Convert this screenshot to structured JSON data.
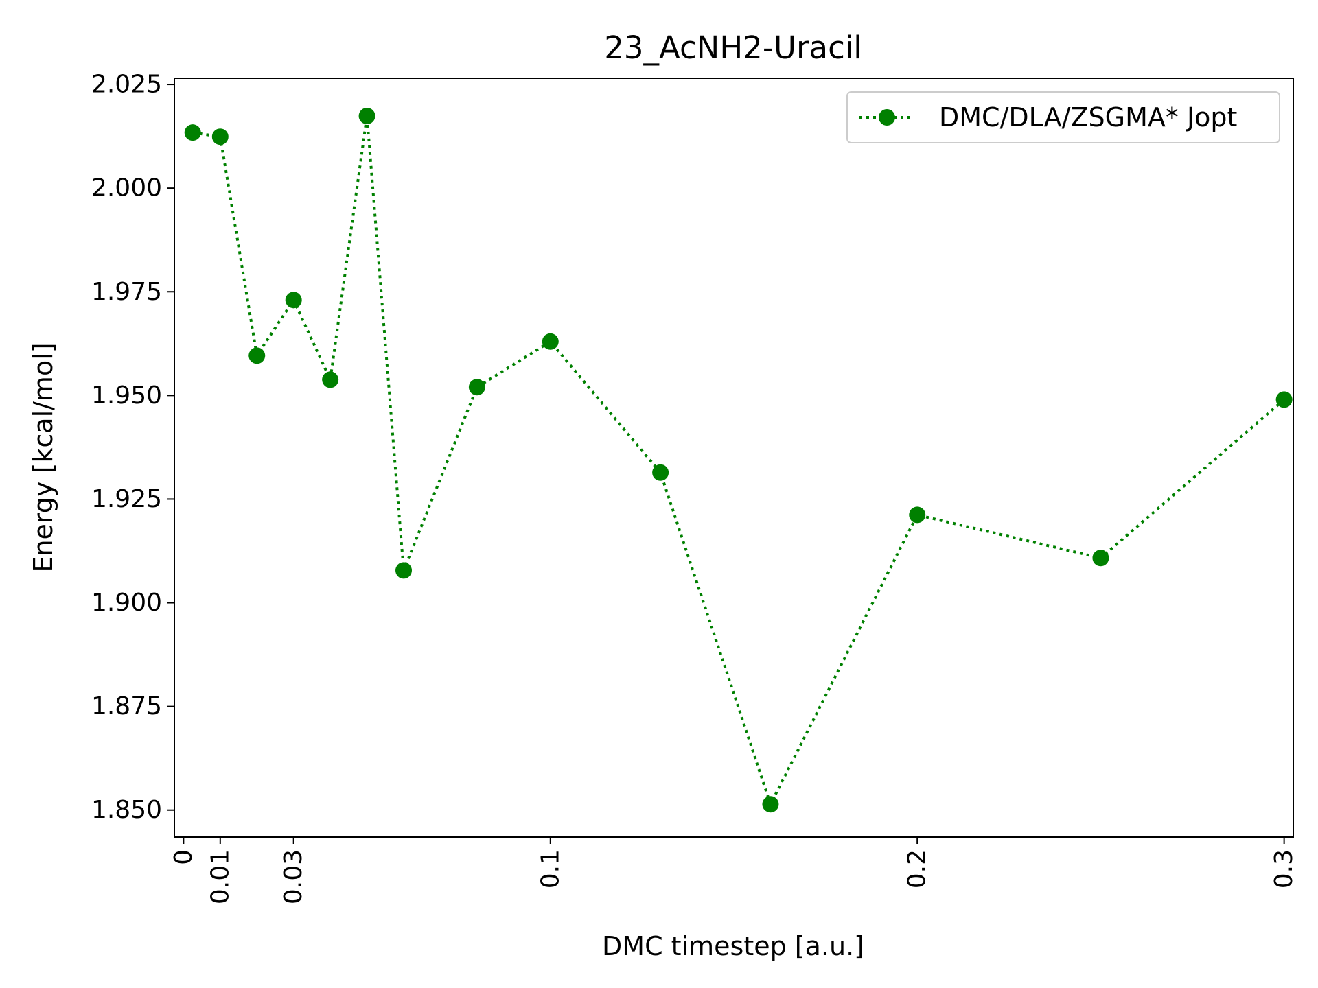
{
  "chart_data": {
    "type": "line",
    "title": "23_AcNH2-Uracil",
    "xlabel": "DMC timestep [a.u.]",
    "ylabel": "Energy [kcal/mol]",
    "xlim": [
      -0.0025,
      0.3025
    ],
    "ylim": [
      1.8435,
      2.0265
    ],
    "xticks": [
      0,
      0.01,
      0.03,
      0.1,
      0.2,
      0.3
    ],
    "xtick_labels": [
      "0",
      "0.01",
      "0.03",
      "0.1",
      "0.2",
      "0.3"
    ],
    "yticks": [
      1.85,
      1.875,
      1.9,
      1.925,
      1.95,
      1.975,
      2.0,
      2.025
    ],
    "ytick_labels": [
      "1.850",
      "1.875",
      "1.900",
      "1.925",
      "1.950",
      "1.975",
      "2.000",
      "2.025"
    ],
    "grid": false,
    "legend_position": "top-right",
    "series": [
      {
        "name": "DMC/DLA/ZSGMA* Jopt",
        "color": "#008000",
        "line_style": "dotted",
        "marker": "circle",
        "x": [
          0.0025,
          0.01,
          0.02,
          0.03,
          0.04,
          0.05,
          0.06,
          0.08,
          0.1,
          0.13,
          0.16,
          0.2,
          0.25,
          0.3
        ],
        "y": [
          2.0134,
          2.0124,
          1.9596,
          1.973,
          1.9538,
          2.0174,
          1.9078,
          1.952,
          1.963,
          1.9314,
          1.8514,
          1.9212,
          1.9108,
          1.949
        ]
      }
    ]
  }
}
